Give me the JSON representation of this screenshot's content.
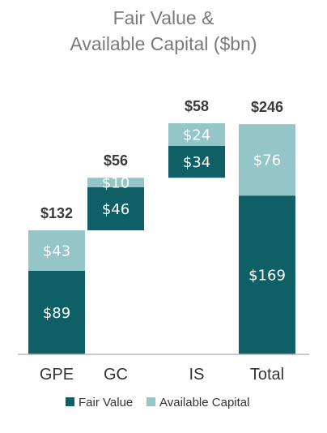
{
  "colors": {
    "fair_value": "#0f6066",
    "available_capital": "#94c6c8",
    "axis": "#b8b8b8"
  },
  "chart_data": {
    "type": "bar",
    "subtype": "waterfall-stacked",
    "title_lines": [
      "Fair Value &",
      "Available Capital ($bn)"
    ],
    "categories": [
      "GPE",
      "GC",
      "IS",
      "Total"
    ],
    "series": [
      {
        "name": "Fair Value",
        "values": [
          89,
          46,
          34,
          169
        ],
        "labels": [
          "$89",
          "$46",
          "$34",
          "$169"
        ]
      },
      {
        "name": "Available Capital",
        "values": [
          43,
          10,
          24,
          76
        ],
        "labels": [
          "$43",
          "$10",
          "$24",
          "$76"
        ]
      }
    ],
    "totals": [
      132,
      56,
      58,
      246
    ],
    "total_labels": [
      "$132",
      "$56",
      "$58",
      "$246"
    ],
    "bases": [
      0,
      132,
      188,
      0
    ],
    "ylim": [
      0,
      246
    ],
    "legend_position": "bottom",
    "grid": false
  }
}
